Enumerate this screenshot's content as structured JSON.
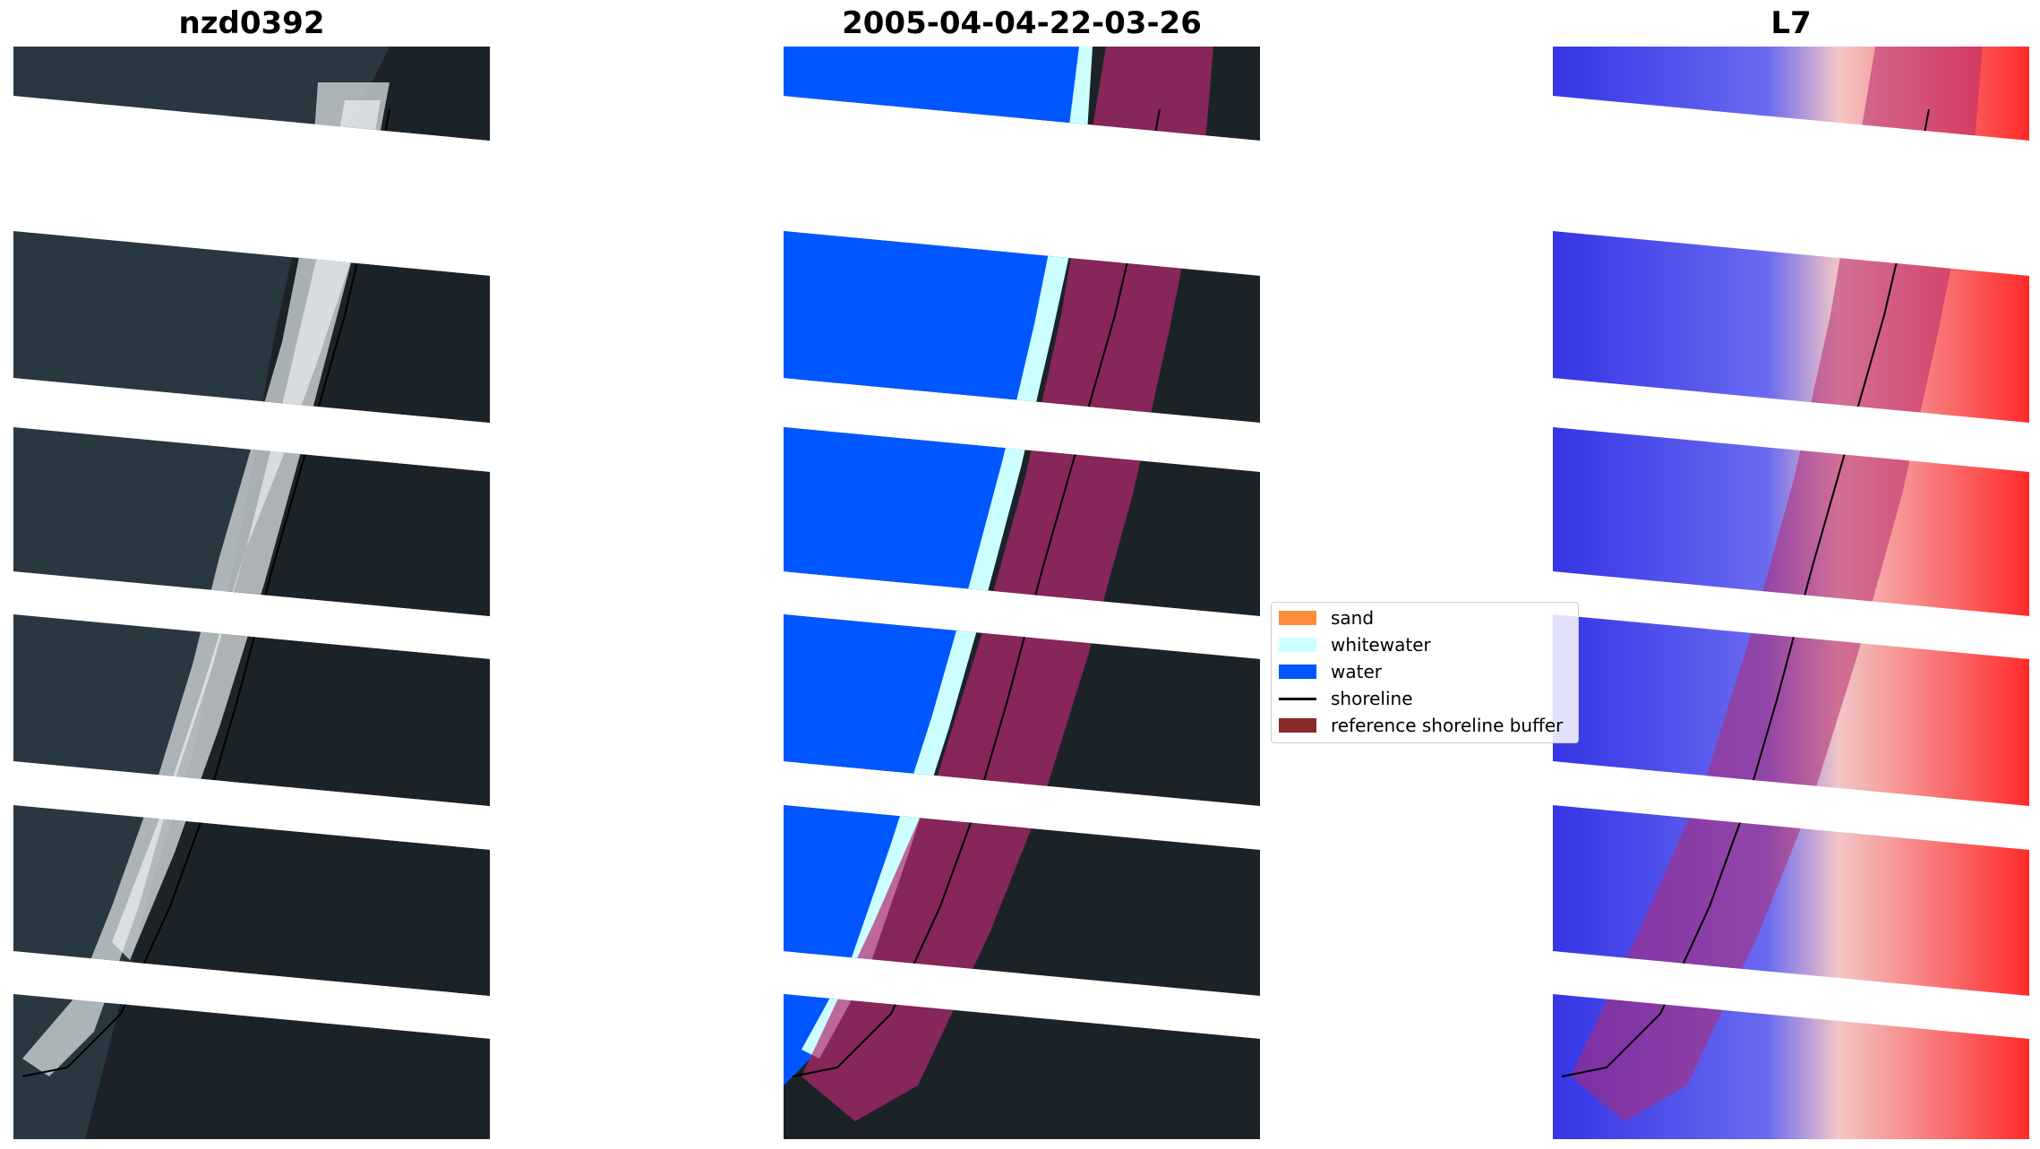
{
  "panels": [
    {
      "title": "nzd0392",
      "kind": "rgb"
    },
    {
      "title": "2005-04-04-22-03-26",
      "kind": "classified"
    },
    {
      "title": "L7",
      "kind": "index"
    }
  ],
  "legend": {
    "items": [
      {
        "label": "sand",
        "type": "patch",
        "color": "#ff8c3a"
      },
      {
        "label": "whitewater",
        "type": "patch",
        "color": "#ccffff"
      },
      {
        "label": "water",
        "type": "patch",
        "color": "#0057ff"
      },
      {
        "label": "shoreline",
        "type": "line",
        "color": "#000000"
      },
      {
        "label": "reference shoreline buffer",
        "type": "patch",
        "color": "#8b2a2a"
      }
    ]
  },
  "colors": {
    "land": "#1f2a30",
    "ocean_rgb": "#26363f",
    "surf": "#d9dde0",
    "water": "#0057ff",
    "whitewater": "#ccffff",
    "buffer": "#b4286e",
    "index_water": "#3535e6",
    "index_land": "#ff2a2a"
  }
}
